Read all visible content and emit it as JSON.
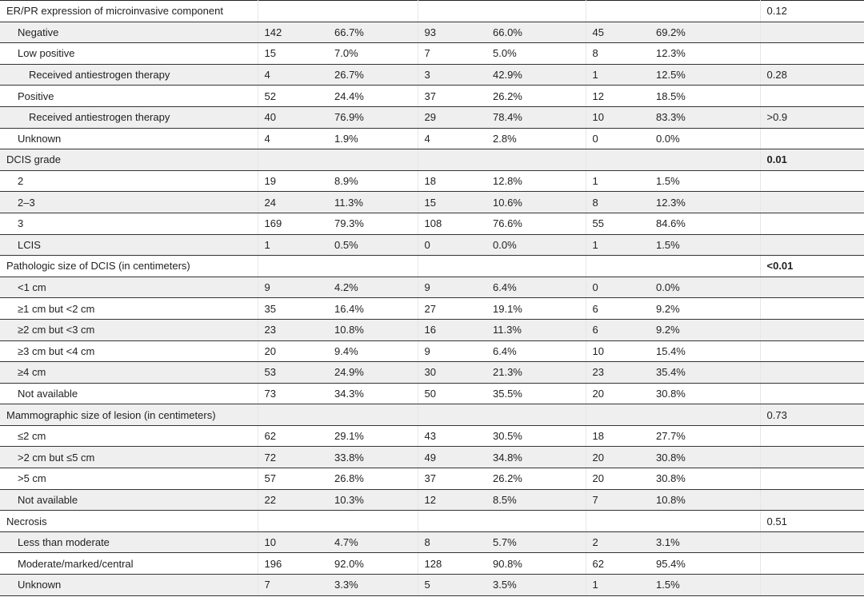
{
  "rows": [
    {
      "label": "ER/PR expression of microinvasive component",
      "level": 0,
      "vals": [
        "",
        "",
        "",
        "",
        "",
        ""
      ],
      "p": "0.12",
      "bold": false
    },
    {
      "label": "Negative",
      "level": 1,
      "vals": [
        "142",
        "66.7%",
        "93",
        "66.0%",
        "45",
        "69.2%"
      ],
      "p": ""
    },
    {
      "label": "Low positive",
      "level": 1,
      "vals": [
        "15",
        "7.0%",
        "7",
        "5.0%",
        "8",
        "12.3%"
      ],
      "p": ""
    },
    {
      "label": "Received antiestrogen therapy",
      "level": 2,
      "vals": [
        "4",
        "26.7%",
        "3",
        "42.9%",
        "1",
        "12.5%"
      ],
      "p": "0.28"
    },
    {
      "label": "Positive",
      "level": 1,
      "vals": [
        "52",
        "24.4%",
        "37",
        "26.2%",
        "12",
        "18.5%"
      ],
      "p": ""
    },
    {
      "label": "Received antiestrogen therapy",
      "level": 2,
      "vals": [
        "40",
        "76.9%",
        "29",
        "78.4%",
        "10",
        "83.3%"
      ],
      "p": ">0.9"
    },
    {
      "label": "Unknown",
      "level": 1,
      "vals": [
        "4",
        "1.9%",
        "4",
        "2.8%",
        "0",
        "0.0%"
      ],
      "p": ""
    },
    {
      "label": "DCIS grade",
      "level": 0,
      "vals": [
        "",
        "",
        "",
        "",
        "",
        ""
      ],
      "p": "0.01",
      "bold": true
    },
    {
      "label": "2",
      "level": 1,
      "vals": [
        "19",
        "8.9%",
        "18",
        "12.8%",
        "1",
        "1.5%"
      ],
      "p": ""
    },
    {
      "label": "2–3",
      "level": 1,
      "vals": [
        "24",
        "11.3%",
        "15",
        "10.6%",
        "8",
        "12.3%"
      ],
      "p": ""
    },
    {
      "label": "3",
      "level": 1,
      "vals": [
        "169",
        "79.3%",
        "108",
        "76.6%",
        "55",
        "84.6%"
      ],
      "p": ""
    },
    {
      "label": "LCIS",
      "level": 1,
      "vals": [
        "1",
        "0.5%",
        "0",
        "0.0%",
        "1",
        "1.5%"
      ],
      "p": ""
    },
    {
      "label": "Pathologic size of DCIS (in centimeters)",
      "level": 0,
      "vals": [
        "",
        "",
        "",
        "",
        "",
        ""
      ],
      "p": "<0.01",
      "bold": true
    },
    {
      "label": "<1 cm",
      "level": 1,
      "vals": [
        "9",
        "4.2%",
        "9",
        "6.4%",
        "0",
        "0.0%"
      ],
      "p": ""
    },
    {
      "label": "≥1 cm but <2 cm",
      "level": 1,
      "vals": [
        "35",
        "16.4%",
        "27",
        "19.1%",
        "6",
        "9.2%"
      ],
      "p": ""
    },
    {
      "label": "≥2 cm but <3 cm",
      "level": 1,
      "vals": [
        "23",
        "10.8%",
        "16",
        "11.3%",
        "6",
        "9.2%"
      ],
      "p": ""
    },
    {
      "label": "≥3 cm but <4 cm",
      "level": 1,
      "vals": [
        "20",
        "9.4%",
        "9",
        "6.4%",
        "10",
        "15.4%"
      ],
      "p": ""
    },
    {
      "label": "≥4 cm",
      "level": 1,
      "vals": [
        "53",
        "24.9%",
        "30",
        "21.3%",
        "23",
        "35.4%"
      ],
      "p": ""
    },
    {
      "label": "Not available",
      "level": 1,
      "vals": [
        "73",
        "34.3%",
        "50",
        "35.5%",
        "20",
        "30.8%"
      ],
      "p": ""
    },
    {
      "label": "Mammographic size of lesion (in centimeters)",
      "level": 0,
      "vals": [
        "",
        "",
        "",
        "",
        "",
        ""
      ],
      "p": "0.73",
      "bold": false
    },
    {
      "label": "≤2 cm",
      "level": 1,
      "vals": [
        "62",
        "29.1%",
        "43",
        "30.5%",
        "18",
        "27.7%"
      ],
      "p": ""
    },
    {
      "label": ">2 cm but ≤5 cm",
      "level": 1,
      "vals": [
        "72",
        "33.8%",
        "49",
        "34.8%",
        "20",
        "30.8%"
      ],
      "p": ""
    },
    {
      "label": ">5 cm",
      "level": 1,
      "vals": [
        "57",
        "26.8%",
        "37",
        "26.2%",
        "20",
        "30.8%"
      ],
      "p": ""
    },
    {
      "label": "Not available",
      "level": 1,
      "vals": [
        "22",
        "10.3%",
        "12",
        "8.5%",
        "7",
        "10.8%"
      ],
      "p": ""
    },
    {
      "label": "Necrosis",
      "level": 0,
      "vals": [
        "",
        "",
        "",
        "",
        "",
        ""
      ],
      "p": "0.51",
      "bold": false
    },
    {
      "label": "Less than moderate",
      "level": 1,
      "vals": [
        "10",
        "4.7%",
        "8",
        "5.7%",
        "2",
        "3.1%"
      ],
      "p": ""
    },
    {
      "label": "Moderate/marked/central",
      "level": 1,
      "vals": [
        "196",
        "92.0%",
        "128",
        "90.8%",
        "62",
        "95.4%"
      ],
      "p": ""
    },
    {
      "label": "Unknown",
      "level": 1,
      "vals": [
        "7",
        "3.3%",
        "5",
        "3.5%",
        "1",
        "1.5%"
      ],
      "p": ""
    }
  ]
}
